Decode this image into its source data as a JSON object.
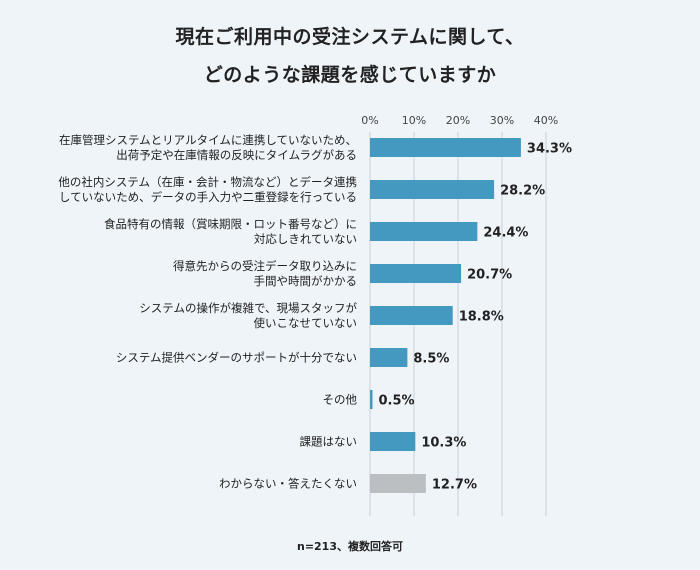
{
  "title": {
    "line1": "現在ご利用中の受注システムに関して、",
    "line2": "どのような課題を感じていますか"
  },
  "footnote": "n=213、複数回答可",
  "colors": {
    "bar": "#4499c0",
    "bar_muted": "#bcbfc2",
    "grid": "#c9d1d9",
    "text": "#222222"
  },
  "chart_data": {
    "type": "bar",
    "orientation": "horizontal",
    "title": "現在ご利用中の受注システムに関して、どのような課題を感じていますか",
    "xlim": [
      0,
      40
    ],
    "ticks": [
      0,
      10,
      20,
      30,
      40
    ],
    "tick_labels": [
      "0%",
      "10%",
      "20%",
      "30%",
      "40%"
    ],
    "grid": true,
    "categories": [
      [
        "在庫管理システムとリアルタイムに連携していないため、",
        "出荷予定や在庫情報の反映にタイムラグがある"
      ],
      [
        "他の社内システム（在庫・会計・物流など）とデータ連携",
        "していないため、データの手入力や二重登録を行っている"
      ],
      [
        "食品特有の情報（賞味期限・ロット番号など）に",
        "対応しきれていない"
      ],
      [
        "得意先からの受注データ取り込みに",
        "手間や時間がかかる"
      ],
      [
        "システムの操作が複雑で、現場スタッフが",
        "使いこなせていない"
      ],
      [
        "システム提供ベンダーのサポートが十分でない"
      ],
      [
        "その他"
      ],
      [
        "課題はない"
      ],
      [
        "わからない・答えたくない"
      ]
    ],
    "values": [
      34.3,
      28.2,
      24.4,
      20.7,
      18.8,
      8.5,
      0.5,
      10.3,
      12.7
    ],
    "value_labels": [
      "34.3%",
      "28.2%",
      "24.4%",
      "20.7%",
      "18.8%",
      "8.5%",
      "0.5%",
      "10.3%",
      "12.7%"
    ],
    "muted": [
      false,
      false,
      false,
      false,
      false,
      false,
      false,
      false,
      true
    ]
  }
}
